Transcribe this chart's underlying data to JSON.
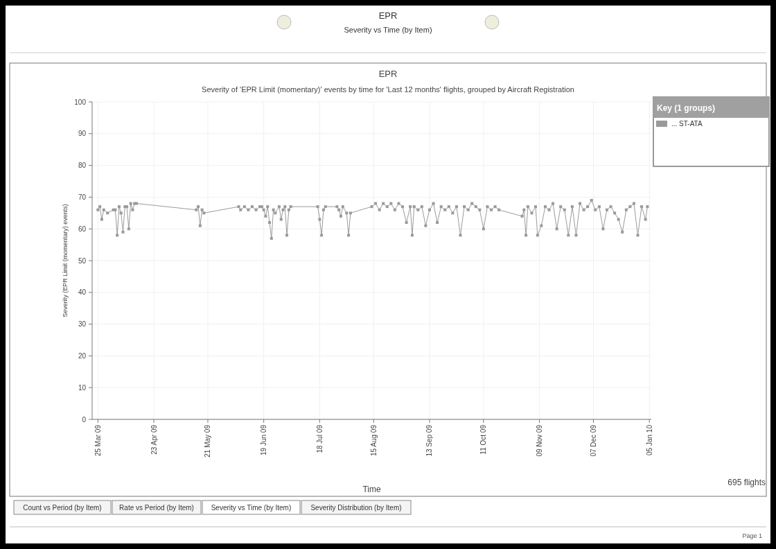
{
  "chart_data": {
    "type": "line",
    "title": "EPR",
    "subtitle": "Severity of 'EPR Limit (momentary)' events by time for 'Last 12 months' flights, grouped by Aircraft Registration",
    "xlabel": "Time",
    "ylabel": "Severity (EPR Limit (momentary) events)",
    "legend_title": "Key (1 groups)",
    "legend": "top right",
    "grid": true,
    "marker": "square",
    "line_style": "solid",
    "xlim": [
      "2009-03-22",
      "2010-01-06"
    ],
    "xticks": [
      {
        "value": "2009-03-25",
        "label": "25 Mar 09"
      },
      {
        "value": "2009-04-23",
        "label": "23 Apr 09"
      },
      {
        "value": "2009-05-21",
        "label": "21 May 09"
      },
      {
        "value": "2009-06-19",
        "label": "19 Jun 09"
      },
      {
        "value": "2009-07-18",
        "label": "18 Jul 09"
      },
      {
        "value": "2009-08-15",
        "label": "15 Aug 09"
      },
      {
        "value": "2009-09-13",
        "label": "13 Sep 09"
      },
      {
        "value": "2009-10-11",
        "label": "11 Oct 09"
      },
      {
        "value": "2009-11-09",
        "label": "09 Nov 09"
      },
      {
        "value": "2009-12-07",
        "label": "07 Dec 09"
      },
      {
        "value": "2010-01-05",
        "label": "05 Jan 10"
      }
    ],
    "ylim": [
      0,
      100
    ],
    "yticks": [
      0,
      10,
      20,
      30,
      40,
      50,
      60,
      70,
      80,
      90,
      100
    ],
    "x": [
      "2009-03-25",
      "2009-03-26",
      "2009-03-27",
      "2009-03-28",
      "2009-03-30",
      "2009-04-02",
      "2009-04-03",
      "2009-04-04",
      "2009-04-05",
      "2009-04-06",
      "2009-04-07",
      "2009-04-08",
      "2009-04-09",
      "2009-04-10",
      "2009-04-11",
      "2009-04-12",
      "2009-04-13",
      "2009-04-14",
      "2009-05-15",
      "2009-05-16",
      "2009-05-17",
      "2009-05-18",
      "2009-05-19",
      "2009-06-06",
      "2009-06-07",
      "2009-06-09",
      "2009-06-11",
      "2009-06-13",
      "2009-06-15",
      "2009-06-17",
      "2009-06-18",
      "2009-06-19",
      "2009-06-20",
      "2009-06-21",
      "2009-06-22",
      "2009-06-23",
      "2009-06-24",
      "2009-06-25",
      "2009-06-27",
      "2009-06-28",
      "2009-06-29",
      "2009-06-30",
      "2009-07-01",
      "2009-07-02",
      "2009-07-03",
      "2009-07-17",
      "2009-07-18",
      "2009-07-19",
      "2009-07-20",
      "2009-07-21",
      "2009-07-27",
      "2009-07-28",
      "2009-07-29",
      "2009-07-30",
      "2009-08-01",
      "2009-08-02",
      "2009-08-03",
      "2009-08-14",
      "2009-08-16",
      "2009-08-18",
      "2009-08-20",
      "2009-08-22",
      "2009-08-24",
      "2009-08-26",
      "2009-08-28",
      "2009-08-30",
      "2009-09-01",
      "2009-09-03",
      "2009-09-04",
      "2009-09-05",
      "2009-09-07",
      "2009-09-09",
      "2009-09-11",
      "2009-09-13",
      "2009-09-15",
      "2009-09-17",
      "2009-09-19",
      "2009-09-21",
      "2009-09-23",
      "2009-09-25",
      "2009-09-27",
      "2009-09-29",
      "2009-10-01",
      "2009-10-03",
      "2009-10-05",
      "2009-10-07",
      "2009-10-09",
      "2009-10-11",
      "2009-10-13",
      "2009-10-15",
      "2009-10-17",
      "2009-10-19",
      "2009-10-31",
      "2009-11-01",
      "2009-11-02",
      "2009-11-03",
      "2009-11-05",
      "2009-11-07",
      "2009-11-08",
      "2009-11-10",
      "2009-11-12",
      "2009-11-14",
      "2009-11-16",
      "2009-11-18",
      "2009-11-20",
      "2009-11-22",
      "2009-11-24",
      "2009-11-26",
      "2009-11-28",
      "2009-11-30",
      "2009-12-02",
      "2009-12-04",
      "2009-12-06",
      "2009-12-08",
      "2009-12-10",
      "2009-12-12",
      "2009-12-14",
      "2009-12-16",
      "2009-12-18",
      "2009-12-20",
      "2009-12-22",
      "2009-12-24",
      "2009-12-26",
      "2009-12-28",
      "2009-12-30",
      "2010-01-01",
      "2010-01-03",
      "2010-01-04"
    ],
    "series": [
      {
        "name": "... ST-ATA",
        "color": "#9a9a9a",
        "values": [
          66,
          67,
          63,
          66,
          65,
          66,
          66,
          58,
          67,
          65,
          59,
          67,
          67,
          60,
          68,
          66,
          68,
          68,
          66,
          67,
          61,
          66,
          65,
          67,
          66,
          67,
          66,
          67,
          66,
          67,
          67,
          66,
          64,
          67,
          62,
          57,
          66,
          65,
          67,
          63,
          66,
          67,
          58,
          66,
          67,
          67,
          63,
          58,
          66,
          67,
          67,
          66,
          64,
          67,
          65,
          58,
          65,
          67,
          68,
          66,
          68,
          67,
          68,
          66,
          68,
          67,
          62,
          67,
          58,
          67,
          66,
          67,
          61,
          66,
          68,
          62,
          67,
          66,
          67,
          65,
          67,
          58,
          67,
          66,
          68,
          67,
          66,
          60,
          67,
          66,
          67,
          66,
          64,
          66,
          58,
          67,
          65,
          67,
          58,
          61,
          67,
          66,
          68,
          60,
          67,
          66,
          58,
          67,
          58,
          68,
          66,
          67,
          69,
          66,
          67,
          60,
          66,
          67,
          65,
          63,
          59,
          66,
          67,
          68,
          58,
          67,
          63,
          67
        ]
      }
    ],
    "annotations": [
      "EPR",
      "Severity vs Time (by Item)",
      "695 flights",
      "Count vs Period (by Item)",
      "Rate vs Period (by Item)",
      "Severity vs Time (by Item)",
      "Severity Distribution (by Item)",
      "Page 1"
    ]
  }
}
